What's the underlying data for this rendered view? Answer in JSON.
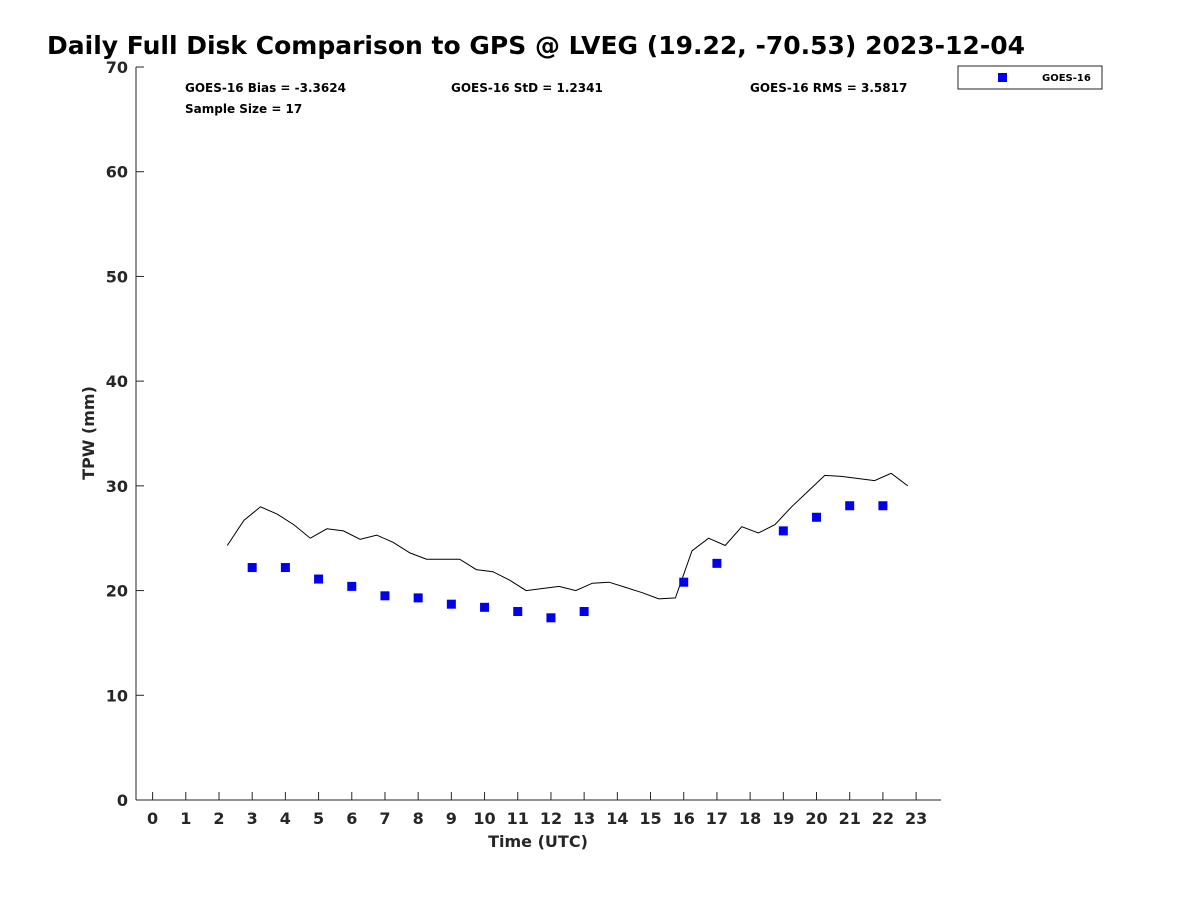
{
  "colors": {
    "series": "#0000ee",
    "reference_line": "#000000",
    "axis": "#262626"
  },
  "stats": {
    "bias": "GOES-16 Bias = -3.3624",
    "std": "GOES-16 StD = 1.2341",
    "rms": "GOES-16 RMS = 3.5817",
    "sample_size": "Sample Size = 17"
  },
  "chart_data": {
    "type": "scatter",
    "title": "Daily Full Disk Comparison to GPS @ LVEG (19.22, -70.53) 2023-12-04",
    "xlabel": "Time (UTC)",
    "ylabel": "TPW (mm)",
    "xlim": [
      -0.5,
      23.75
    ],
    "ylim": [
      0,
      70
    ],
    "xticks": [
      0,
      1,
      2,
      3,
      4,
      5,
      6,
      7,
      8,
      9,
      10,
      11,
      12,
      13,
      14,
      15,
      16,
      17,
      18,
      19,
      20,
      21,
      22,
      23
    ],
    "yticks": [
      0,
      10,
      20,
      30,
      40,
      50,
      60,
      70
    ],
    "grid": false,
    "legend_position": "top-right, outside plot",
    "series": [
      {
        "name": "GOES-16",
        "marker": "square",
        "x": [
          3,
          4,
          5,
          6,
          7,
          8,
          9,
          10,
          11,
          12,
          13,
          16,
          17,
          19,
          20,
          21,
          22
        ],
        "y": [
          22.2,
          22.2,
          21.1,
          20.4,
          19.5,
          19.3,
          18.7,
          18.4,
          18.0,
          17.4,
          18.0,
          20.8,
          22.6,
          25.7,
          27.0,
          28.1,
          28.1
        ]
      },
      {
        "marker": "line",
        "x": [
          2.25,
          2.75,
          3.25,
          3.75,
          4.25,
          4.75,
          5.25,
          5.75,
          6.25,
          6.75,
          7.25,
          7.75,
          8.25,
          8.75,
          9.25,
          9.75,
          10.25,
          10.75,
          11.25,
          11.75,
          12.25,
          12.75,
          13.25,
          13.75,
          14.25,
          14.75,
          15.25,
          15.75,
          16.25,
          16.75,
          17.25,
          17.75,
          18.25,
          18.75,
          19.25,
          19.75,
          20.25,
          20.75,
          21.25,
          21.75,
          22.25,
          22.75
        ],
        "y": [
          24.3,
          26.7,
          28.0,
          27.3,
          26.3,
          25.0,
          25.9,
          25.7,
          24.9,
          25.3,
          24.6,
          23.6,
          23.0,
          23.0,
          23.0,
          22.0,
          21.8,
          21.0,
          20.0,
          20.2,
          20.4,
          20.0,
          20.7,
          20.8,
          20.3,
          19.8,
          19.2,
          19.3,
          23.8,
          25.0,
          24.3,
          26.1,
          25.5,
          26.3,
          28.0,
          29.5,
          31.0,
          30.9,
          30.7,
          30.5,
          31.2,
          30.0
        ]
      }
    ]
  }
}
